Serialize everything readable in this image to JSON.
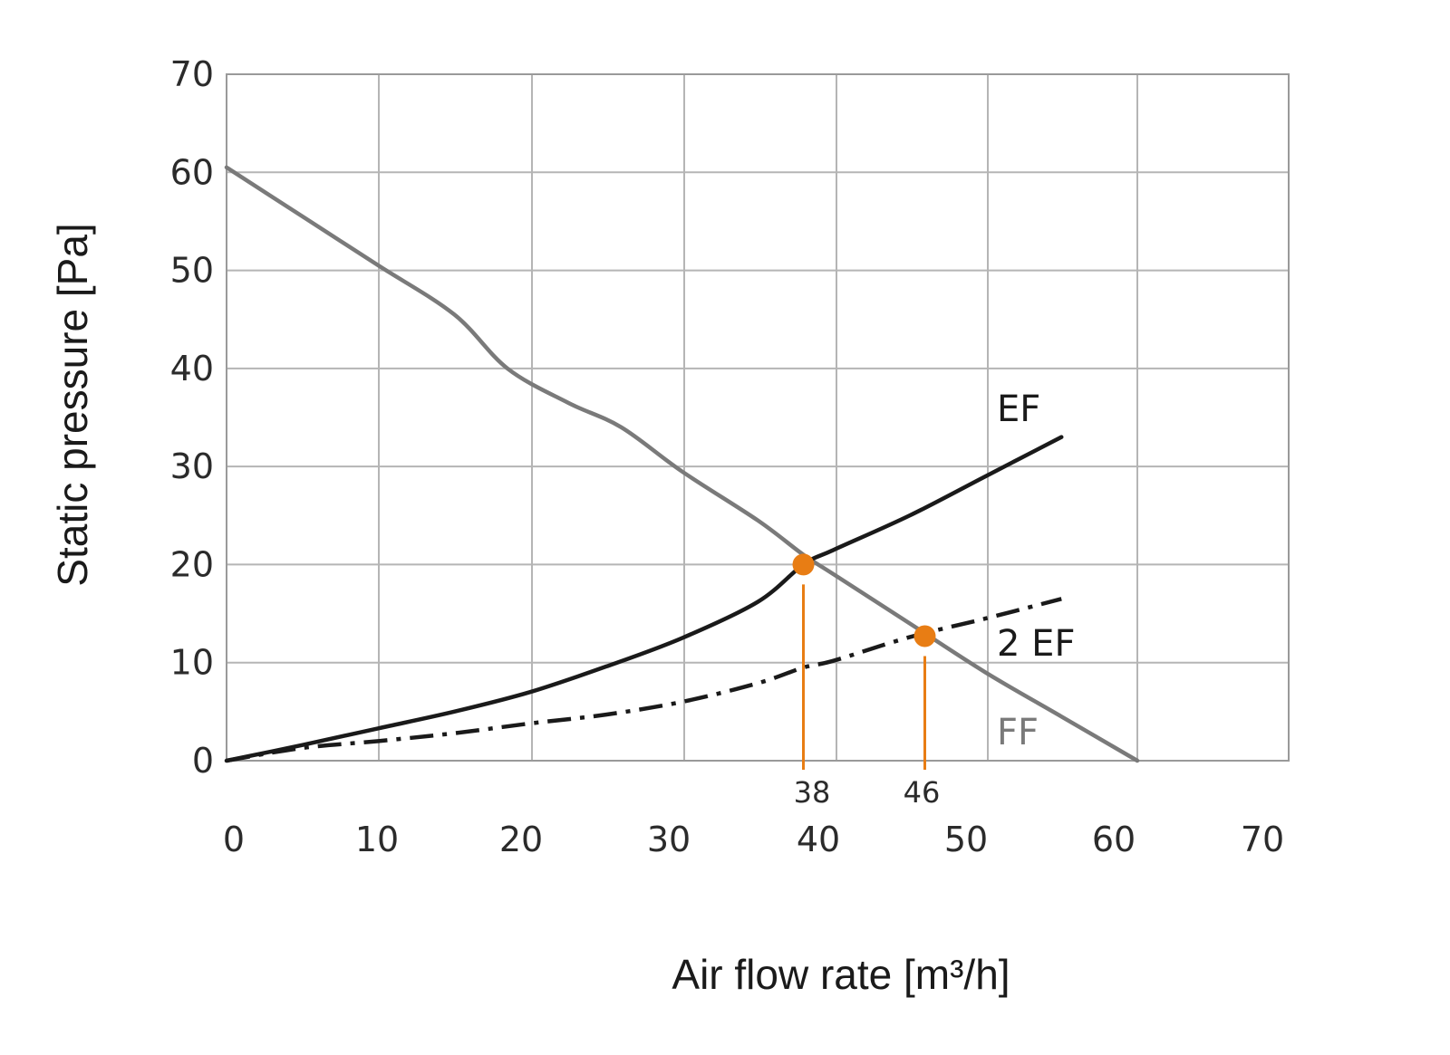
{
  "chart_data": {
    "type": "line",
    "xlabel": "Air flow rate  [m³/h]",
    "ylabel": "Static pressure  [Pa]",
    "xlim": [
      0,
      70
    ],
    "ylim": [
      0,
      70
    ],
    "x_ticks": [
      "0",
      "10",
      "20",
      "30",
      "40",
      "50",
      "60",
      "70"
    ],
    "y_ticks": [
      "0",
      "10",
      "20",
      "30",
      "40",
      "50",
      "60",
      "70"
    ],
    "grid": true,
    "series": [
      {
        "name": "FF",
        "color": "#7a7a7a",
        "style": "solid",
        "points": [
          [
            0,
            60.5
          ],
          [
            5,
            55.5
          ],
          [
            10,
            50.5
          ],
          [
            15,
            45.5
          ],
          [
            18.5,
            40
          ],
          [
            22.5,
            36.5
          ],
          [
            26,
            34
          ],
          [
            30,
            29.5
          ],
          [
            35,
            24.5
          ],
          [
            38,
            21
          ],
          [
            40,
            19
          ],
          [
            45,
            14
          ],
          [
            50,
            9
          ],
          [
            55,
            4.5
          ],
          [
            60,
            0
          ]
        ]
      },
      {
        "name": "EF",
        "color": "#1a1a1a",
        "style": "solid",
        "points": [
          [
            0,
            0
          ],
          [
            5,
            1.6
          ],
          [
            10,
            3.3
          ],
          [
            15,
            5
          ],
          [
            20,
            7
          ],
          [
            25,
            9.6
          ],
          [
            30,
            12.5
          ],
          [
            35,
            16.2
          ],
          [
            38,
            20
          ],
          [
            40,
            21.5
          ],
          [
            45,
            25
          ],
          [
            50,
            29
          ],
          [
            55,
            33
          ]
        ]
      },
      {
        "name": "2 EF",
        "color": "#1a1a1a",
        "style": "dashdot",
        "points": [
          [
            0,
            0
          ],
          [
            5,
            1.3
          ],
          [
            10,
            2
          ],
          [
            15,
            2.8
          ],
          [
            20,
            3.8
          ],
          [
            25,
            4.7
          ],
          [
            30,
            6
          ],
          [
            35,
            7.9
          ],
          [
            38,
            9.5
          ],
          [
            40,
            10.2
          ],
          [
            45,
            12.6
          ],
          [
            50,
            14.5
          ],
          [
            55,
            16.5
          ]
        ]
      }
    ],
    "operating_points": [
      {
        "label": "38",
        "x": 38,
        "y": 20,
        "color": "#e87d14"
      },
      {
        "label": "46",
        "x": 46,
        "y": 12.7,
        "color": "#e87d14"
      }
    ]
  }
}
